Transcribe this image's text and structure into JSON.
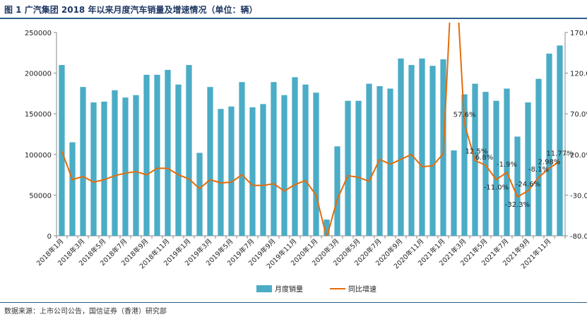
{
  "title": "图 1   广汽集团 2018 年以来月度汽车销量及增速情况（单位：辆）",
  "source": "数据来源：上市公司公告，国信证券（香港）研究部",
  "colors": {
    "bar": "#4bacc6",
    "line": "#e46c0a",
    "rule": "#2e5f8f"
  },
  "chart_data": {
    "type": "bar",
    "categories": [
      "2018年1月",
      "2018年2月",
      "2018年3月",
      "2018年4月",
      "2018年5月",
      "2018年6月",
      "2018年7月",
      "2018年8月",
      "2018年9月",
      "2018年10月",
      "2018年11月",
      "2018年12月",
      "2019年1月",
      "2019年2月",
      "2019年3月",
      "2019年4月",
      "2019年5月",
      "2019年6月",
      "2019年7月",
      "2019年8月",
      "2019年9月",
      "2019年10月",
      "2019年11月",
      "2019年12月",
      "2020年1月",
      "2020年2月",
      "2020年3月",
      "2020年4月",
      "2020年5月",
      "2020年6月",
      "2020年7月",
      "2020年8月",
      "2020年9月",
      "2020年10月",
      "2020年11月",
      "2020年12月",
      "2021年1月",
      "2021年2月",
      "2021年3月",
      "2021年4月",
      "2021年5月",
      "2021年6月",
      "2021年7月",
      "2021年8月",
      "2021年9月",
      "2021年10月",
      "2021年11月",
      "2021年12月"
    ],
    "x_tick_labels": [
      "2018年1月",
      "2018年3月",
      "2018年5月",
      "2018年7月",
      "2018年9月",
      "2018年11月",
      "2019年1月",
      "2019年3月",
      "2019年5月",
      "2019年7月",
      "2019年9月",
      "2019年11月",
      "2020年1月",
      "2020年3月",
      "2020年5月",
      "2020年7月",
      "2020年9月",
      "2020年11月",
      "2021年1月",
      "2021年3月",
      "2021年5月",
      "2021年7月",
      "2021年9月",
      "2021年11月"
    ],
    "series": [
      {
        "name": "月度销量",
        "type": "bar",
        "axis": "left",
        "values": [
          210000,
          115000,
          183000,
          164000,
          165000,
          179000,
          170000,
          173000,
          198000,
          198000,
          204000,
          186000,
          210000,
          102000,
          183000,
          156000,
          159000,
          189000,
          158000,
          162000,
          189000,
          173000,
          195000,
          186000,
          176000,
          20000,
          110000,
          166000,
          166000,
          187000,
          184000,
          181000,
          218000,
          210000,
          218000,
          209000,
          217000,
          105000,
          174000,
          187000,
          177000,
          166000,
          181000,
          122000,
          164000,
          193000,
          224000,
          234000
        ]
      },
      {
        "name": "同比增速",
        "type": "line",
        "axis": "right",
        "values": [
          24.0,
          -11.0,
          -7.0,
          -14.0,
          -11.0,
          -6.0,
          -3.0,
          -1.0,
          -5.0,
          3.0,
          3.0,
          -5.0,
          -10.0,
          -22.0,
          -11.0,
          -15.0,
          -14.0,
          -5.0,
          -18.0,
          -18.0,
          -16.0,
          -25.0,
          -17.0,
          -12.0,
          -30.0,
          -82.0,
          -35.0,
          -6.0,
          -8.0,
          -13.0,
          14.0,
          8.0,
          14.0,
          20.0,
          5.0,
          6.0,
          21.0,
          290.0,
          57.6,
          12.5,
          6.8,
          -11.0,
          -1.9,
          -32.3,
          -24.6,
          -8.1,
          2.98,
          11.77
        ]
      }
    ],
    "annotations": [
      "57.6%",
      "12.5%",
      "6.8%",
      "-11.0%",
      "-1.9%",
      "-32.3%",
      "-24.6%",
      "-8.1%",
      "2.98%",
      "11.77%"
    ],
    "y_left_ticks": [
      "0",
      "50000",
      "100000",
      "150000",
      "200000",
      "250000"
    ],
    "y_right_ticks": [
      "-80.0%",
      "-30.0%",
      "20.0%",
      "70.0%",
      "120.0%",
      "170.0%"
    ],
    "ylim_left": [
      0,
      250000
    ],
    "ylim_right": [
      -80,
      170
    ],
    "grid": false,
    "legend_position": "bottom-center"
  }
}
